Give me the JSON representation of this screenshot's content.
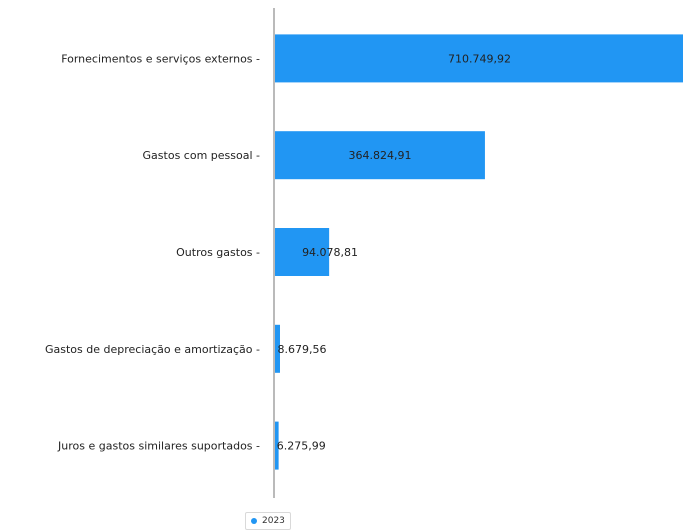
{
  "chart_data": {
    "type": "bar",
    "orientation": "horizontal",
    "categories": [
      "Fornecimentos e serviços externos -",
      "Gastos com pessoal -",
      "Outros gastos -",
      "Gastos de depreciação e amortização -",
      "Juros e gastos similares suportados -"
    ],
    "series": [
      {
        "name": "2023",
        "color": "#2196f3",
        "values": [
          710749.92,
          364824.91,
          94078.81,
          8679.56,
          6275.99
        ],
        "labels": [
          "710.749,92",
          "364.824,91",
          "94.078,81",
          "8.679,56",
          "6.275,99"
        ]
      }
    ],
    "xlabel": "",
    "ylabel": "",
    "legend": {
      "position": "bottom",
      "label": "2023"
    }
  }
}
